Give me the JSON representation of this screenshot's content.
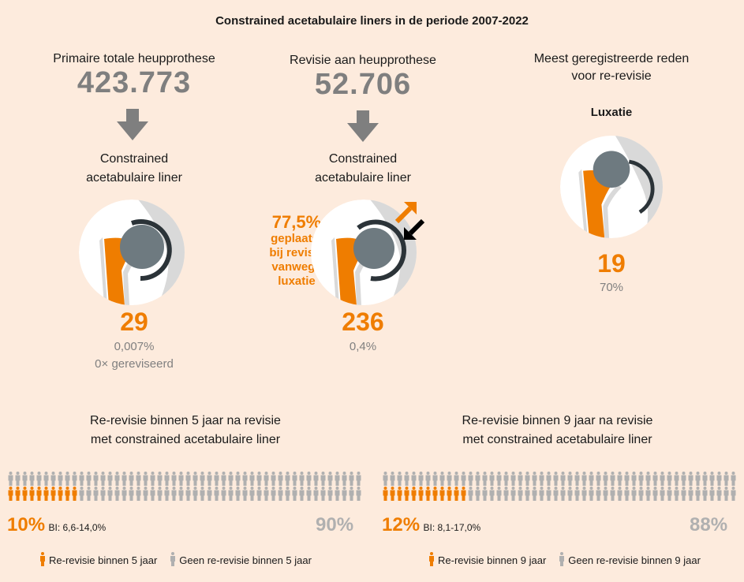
{
  "title": "Constrained acetabulaire liners in de periode 2007-2022",
  "columns": [
    {
      "heading": "Primaire totale heupprothese",
      "total": "423.773",
      "subheading_line1": "Constrained",
      "subheading_line2": "acetabulaire liner",
      "count": "29",
      "percent": "0,007%",
      "note": "0× gereviseerd"
    },
    {
      "heading": "Revisie aan heupprothese",
      "total": "52.706",
      "subheading_line1": "Constrained",
      "subheading_line2": "acetabulaire liner",
      "count": "236",
      "percent": "0,4%",
      "annotation": {
        "percent": "77,5%",
        "line1": "geplaatst",
        "line2": "bij revisie",
        "line3": "vanwege",
        "line4": "luxatie"
      }
    },
    {
      "heading_line1": "Meest geregistreerde reden",
      "heading_line2": "voor re-revisie",
      "reason": "Luxatie",
      "count": "19",
      "percent": "70%"
    }
  ],
  "sections": [
    {
      "title_line1": "Re-revisie binnen 5 jaar na revisie",
      "title_line2": "met constrained acetabulaire liner",
      "rerevision_percent": 10,
      "rerevision_label": "10%",
      "ci": "BI: 6,6-14,0%",
      "no_rerevision_label": "90%",
      "legend_yes": "Re-revisie binnen 5 jaar",
      "legend_no": "Geen re-revisie binnen 5 jaar"
    },
    {
      "title_line1": "Re-revisie binnen 9 jaar na revisie",
      "title_line2": "met constrained acetabulaire liner",
      "rerevision_percent": 12,
      "rerevision_label": "12%",
      "ci": "BI: 8,1-17,0%",
      "no_rerevision_label": "88%",
      "legend_yes": "Re-revisie binnen 9 jaar",
      "legend_no": "Geen re-revisie binnen 9 jaar"
    }
  ],
  "colors": {
    "background": "#fdebdd",
    "orange": "#ef7d00",
    "grey": "#b0b0b0",
    "dark_grey": "#7f7f7f",
    "ball": "#6e7a80",
    "ring": "#2b3338"
  }
}
